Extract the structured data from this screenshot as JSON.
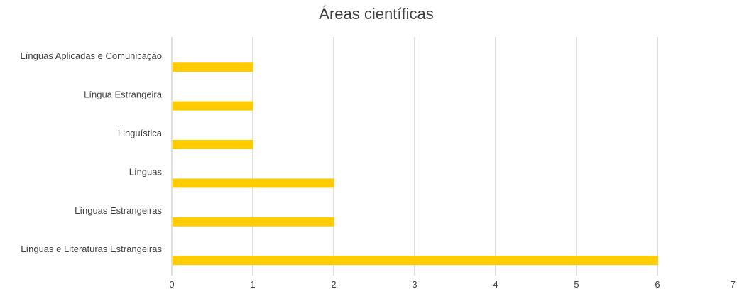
{
  "chart_data": {
    "type": "bar",
    "orientation": "horizontal",
    "title": "Áreas científicas",
    "categories": [
      "Línguas Aplicadas e Comunicação",
      "Língua Estrangeira",
      "Linguística",
      "Línguas",
      "Línguas Estrangeiras",
      "Línguas e Literaturas Estrangeiras"
    ],
    "values": [
      1,
      1,
      1,
      2,
      2,
      6
    ],
    "xlim": [
      0,
      7
    ],
    "xticks": [
      "0",
      "1",
      "2",
      "3",
      "4",
      "5",
      "6",
      "7"
    ],
    "grid": "vertical",
    "legend": "none",
    "bar_color": "#FFCC00",
    "grid_color": "#bfbfbf",
    "text_color": "#404040"
  }
}
